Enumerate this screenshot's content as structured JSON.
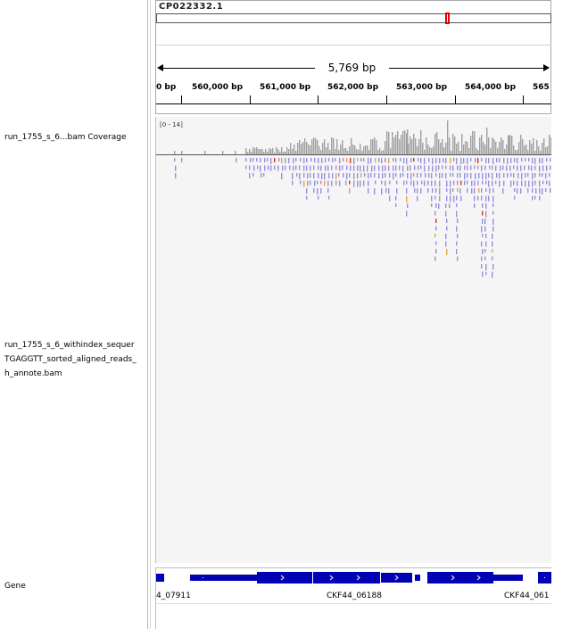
{
  "tracks": {
    "coverage_name": "run_1755_s_6...bam Coverage",
    "alignment_name_lines": [
      "run_1755_s_6_withindex_sequer",
      "TGAGGTT_sorted_aligned_reads_",
      "h_annote.bam"
    ],
    "gene_name": "Gene"
  },
  "ruler": {
    "chromosome": "CP022332.1",
    "span": "5,769 bp",
    "ticks": [
      "0 bp",
      "560,000 bp",
      "561,000 bp",
      "562,000 bp",
      "563,000 bp",
      "564,000 bp",
      "565"
    ]
  },
  "coverage": {
    "range": "[0 - 14]",
    "color": "#a0a0a0",
    "max": 14
  },
  "genes": {
    "labels": [
      "4_07911",
      "CKF44_06188",
      "CKF44_061"
    ],
    "color": "#0000b4"
  },
  "colors": {
    "read": "#9a8ee0",
    "mismatch_red": "#d0302c",
    "mismatch_orange": "#e8a050",
    "ideogram_region": "#e00000"
  }
}
